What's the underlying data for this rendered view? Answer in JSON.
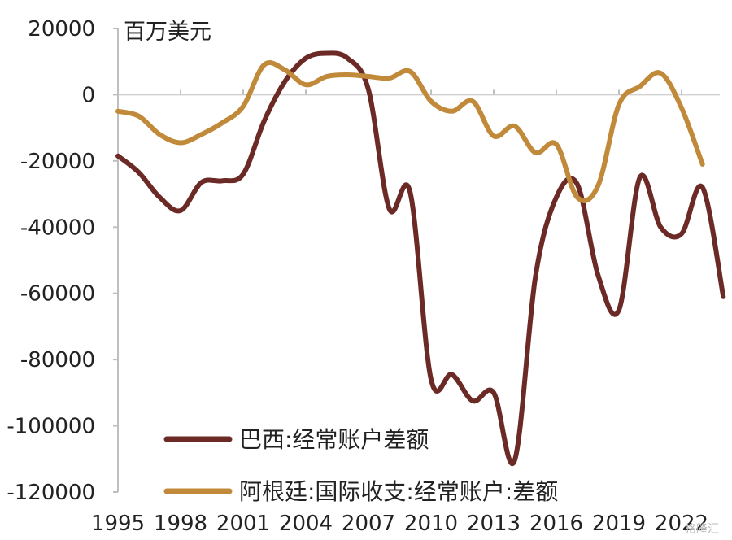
{
  "chart_data": {
    "type": "line",
    "unit_label": "百万美元",
    "ylim": [
      -120000,
      20000
    ],
    "yticks": [
      20000,
      0,
      -20000,
      -40000,
      -60000,
      -80000,
      -100000,
      -120000
    ],
    "xlim": [
      1995,
      2023
    ],
    "xticks": [
      "1995",
      "1998",
      "2001",
      "2004",
      "2007",
      "2010",
      "2013",
      "2016",
      "2019",
      "2022"
    ],
    "grid": false,
    "legend_position": "bottom",
    "series": [
      {
        "name": "巴西:经常账户差额",
        "color": "#6b2a26",
        "points": [
          [
            1995,
            -18500
          ],
          [
            1996,
            -23500
          ],
          [
            1997,
            -31000
          ],
          [
            1998,
            -35000
          ],
          [
            1999,
            -26500
          ],
          [
            2000,
            -26000
          ],
          [
            2001,
            -24000
          ],
          [
            2002,
            -8000
          ],
          [
            2003,
            4000
          ],
          [
            2004,
            11000
          ],
          [
            2005,
            12500
          ],
          [
            2006,
            11000
          ],
          [
            2007,
            1500
          ],
          [
            2008,
            -34500
          ],
          [
            2009,
            -29500
          ],
          [
            2010,
            -86000
          ],
          [
            2011,
            -84500
          ],
          [
            2012,
            -92500
          ],
          [
            2013,
            -90000
          ],
          [
            2014,
            -110500
          ],
          [
            2015,
            -55000
          ],
          [
            2016,
            -31000
          ],
          [
            2017,
            -27000
          ],
          [
            2018,
            -54500
          ],
          [
            2019,
            -65000
          ],
          [
            2020,
            -25000
          ],
          [
            2021,
            -40000
          ],
          [
            2022,
            -42000
          ],
          [
            2023,
            -28000
          ],
          [
            2024,
            -61000
          ]
        ]
      },
      {
        "name": "阿根廷:国际收支:经常账户:差额",
        "color": "#c18a3a",
        "points": [
          [
            1995,
            -5000
          ],
          [
            1996,
            -6500
          ],
          [
            1997,
            -12000
          ],
          [
            1998,
            -14500
          ],
          [
            1999,
            -12000
          ],
          [
            2000,
            -8500
          ],
          [
            2001,
            -3500
          ],
          [
            2002,
            9000
          ],
          [
            2003,
            7500
          ],
          [
            2004,
            3000
          ],
          [
            2005,
            5500
          ],
          [
            2006,
            6000
          ],
          [
            2007,
            5500
          ],
          [
            2008,
            5000
          ],
          [
            2009,
            7000
          ],
          [
            2010,
            -2000
          ],
          [
            2011,
            -5000
          ],
          [
            2012,
            -2000
          ],
          [
            2013,
            -12500
          ],
          [
            2014,
            -9500
          ],
          [
            2015,
            -17500
          ],
          [
            2016,
            -15000
          ],
          [
            2017,
            -31000
          ],
          [
            2018,
            -27500
          ],
          [
            2019,
            -3000
          ],
          [
            2020,
            2500
          ],
          [
            2021,
            6500
          ],
          [
            2022,
            -4000
          ],
          [
            2023,
            -21000
          ]
        ]
      }
    ]
  },
  "watermark_text": "格隆汇"
}
